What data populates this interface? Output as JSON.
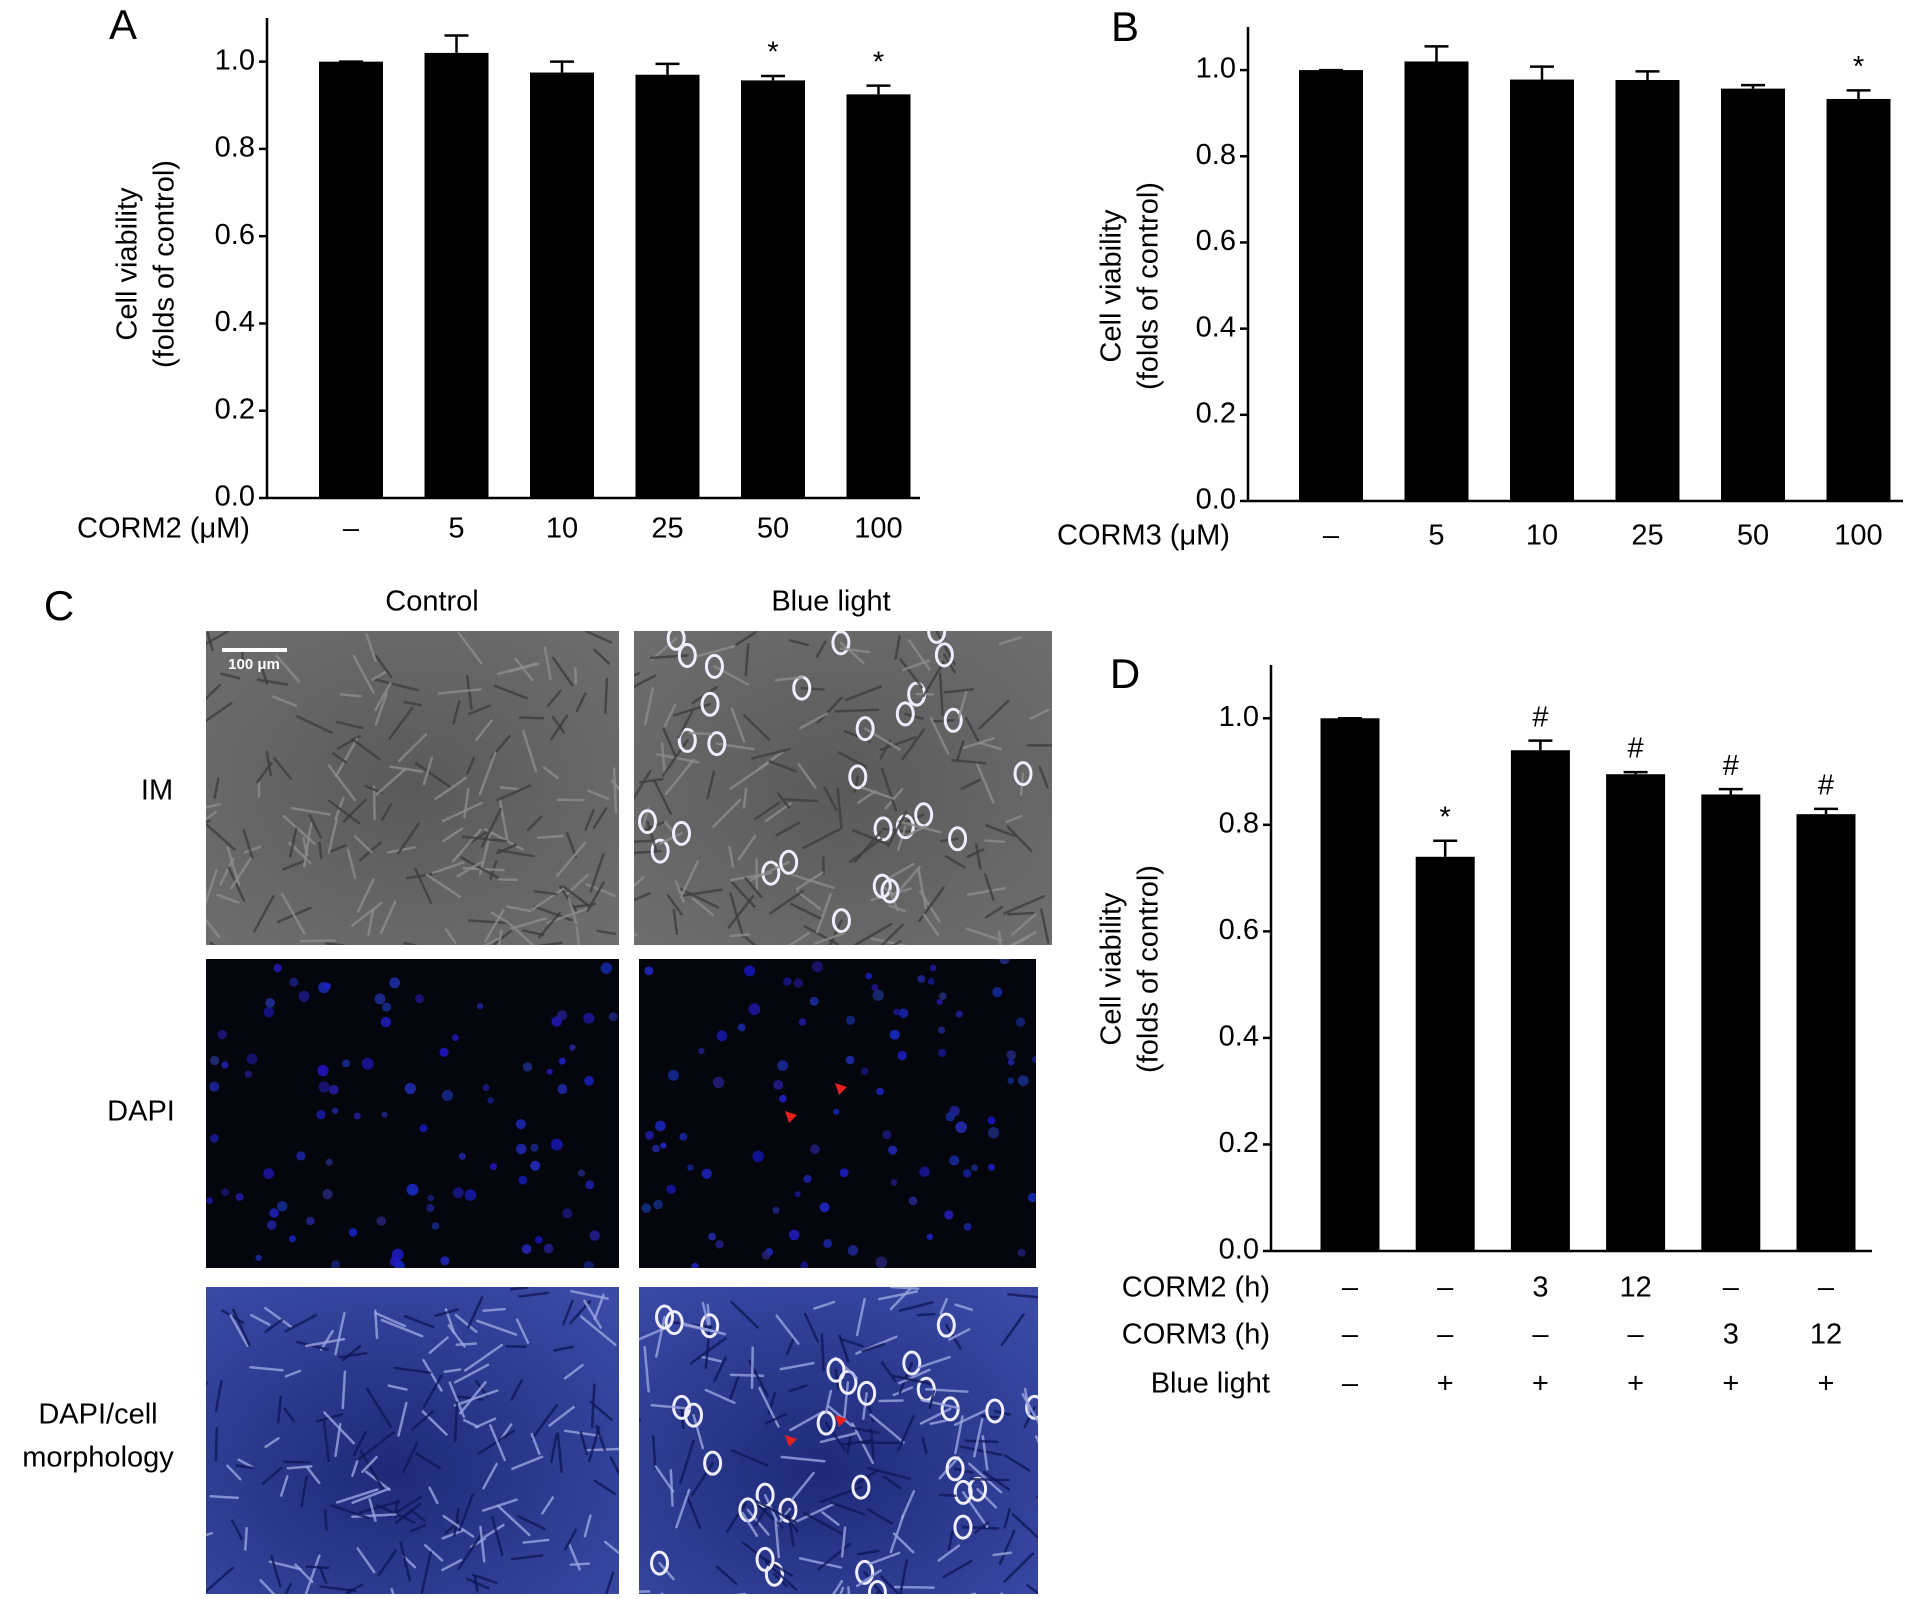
{
  "chart_data": [
    {
      "type": "bar",
      "panel_label": "A",
      "ylabel": [
        "Cell viability",
        "(folds of control)"
      ],
      "xlabel": "CORM2 (μM)",
      "categories": [
        "–",
        "5",
        "10",
        "25",
        "50",
        "100"
      ],
      "values": [
        1.0,
        1.02,
        0.975,
        0.97,
        0.957,
        0.925
      ],
      "errors": [
        0,
        0.04,
        0.025,
        0.025,
        0.01,
        0.02
      ],
      "annotations": [
        null,
        null,
        null,
        null,
        "*",
        "*"
      ],
      "color": "#000000",
      "ylim": [
        0,
        1.1
      ],
      "yticks": [
        {
          "value": 0,
          "label": "0.0"
        },
        0.2,
        0.4,
        0.6,
        0.8,
        {
          "value": 1,
          "label": "1.0"
        }
      ]
    },
    {
      "type": "bar",
      "panel_label": "B",
      "ylabel": [
        "Cell viability",
        "(folds of control)"
      ],
      "xlabel": "CORM3 (μM)",
      "categories": [
        "–",
        "5",
        "10",
        "25",
        "50",
        "100"
      ],
      "values": [
        1.0,
        1.02,
        0.978,
        0.977,
        0.957,
        0.933
      ],
      "errors": [
        0,
        0.035,
        0.03,
        0.02,
        0.008,
        0.02
      ],
      "annotations": [
        null,
        null,
        null,
        null,
        null,
        "*"
      ],
      "color": "#000000",
      "ylim": [
        0,
        1.1
      ],
      "yticks": [
        {
          "value": 0,
          "label": "0.0"
        },
        0.2,
        0.4,
        0.6,
        0.8,
        {
          "value": 1,
          "label": "1.0"
        }
      ]
    },
    {
      "type": "bar",
      "panel_label": "D",
      "ylabel": [
        "Cell viability",
        "(folds of control)"
      ],
      "condition_rows": [
        {
          "label": "CORM2 (h)",
          "values": [
            "–",
            "–",
            "3",
            "12",
            "–",
            "–"
          ]
        },
        {
          "label": "CORM3 (h)",
          "values": [
            "–",
            "–",
            "–",
            "–",
            "3",
            "12"
          ]
        },
        {
          "label": "Blue light",
          "values": [
            "–",
            "+",
            "+",
            "+",
            "+",
            "+"
          ]
        }
      ],
      "values": [
        1.0,
        0.74,
        0.94,
        0.895,
        0.857,
        0.82
      ],
      "errors": [
        0,
        0.03,
        0.018,
        0.004,
        0.01,
        0.01
      ],
      "annotations": [
        null,
        "*",
        "#",
        "#",
        "#",
        "#"
      ],
      "color": "#000000",
      "ylim": [
        0,
        1.1
      ],
      "yticks": [
        {
          "value": 0,
          "label": "0.0"
        },
        0.2,
        0.4,
        0.6,
        0.8,
        {
          "value": 1,
          "label": "1.0"
        }
      ]
    }
  ],
  "panel_c": {
    "label": "C",
    "columns": [
      "Control",
      "Blue light"
    ],
    "rows": [
      [
        "IM"
      ],
      [
        "DAPI"
      ],
      [
        "DAPI/cell",
        "morphology"
      ]
    ],
    "scale_bar": "100 μm"
  }
}
